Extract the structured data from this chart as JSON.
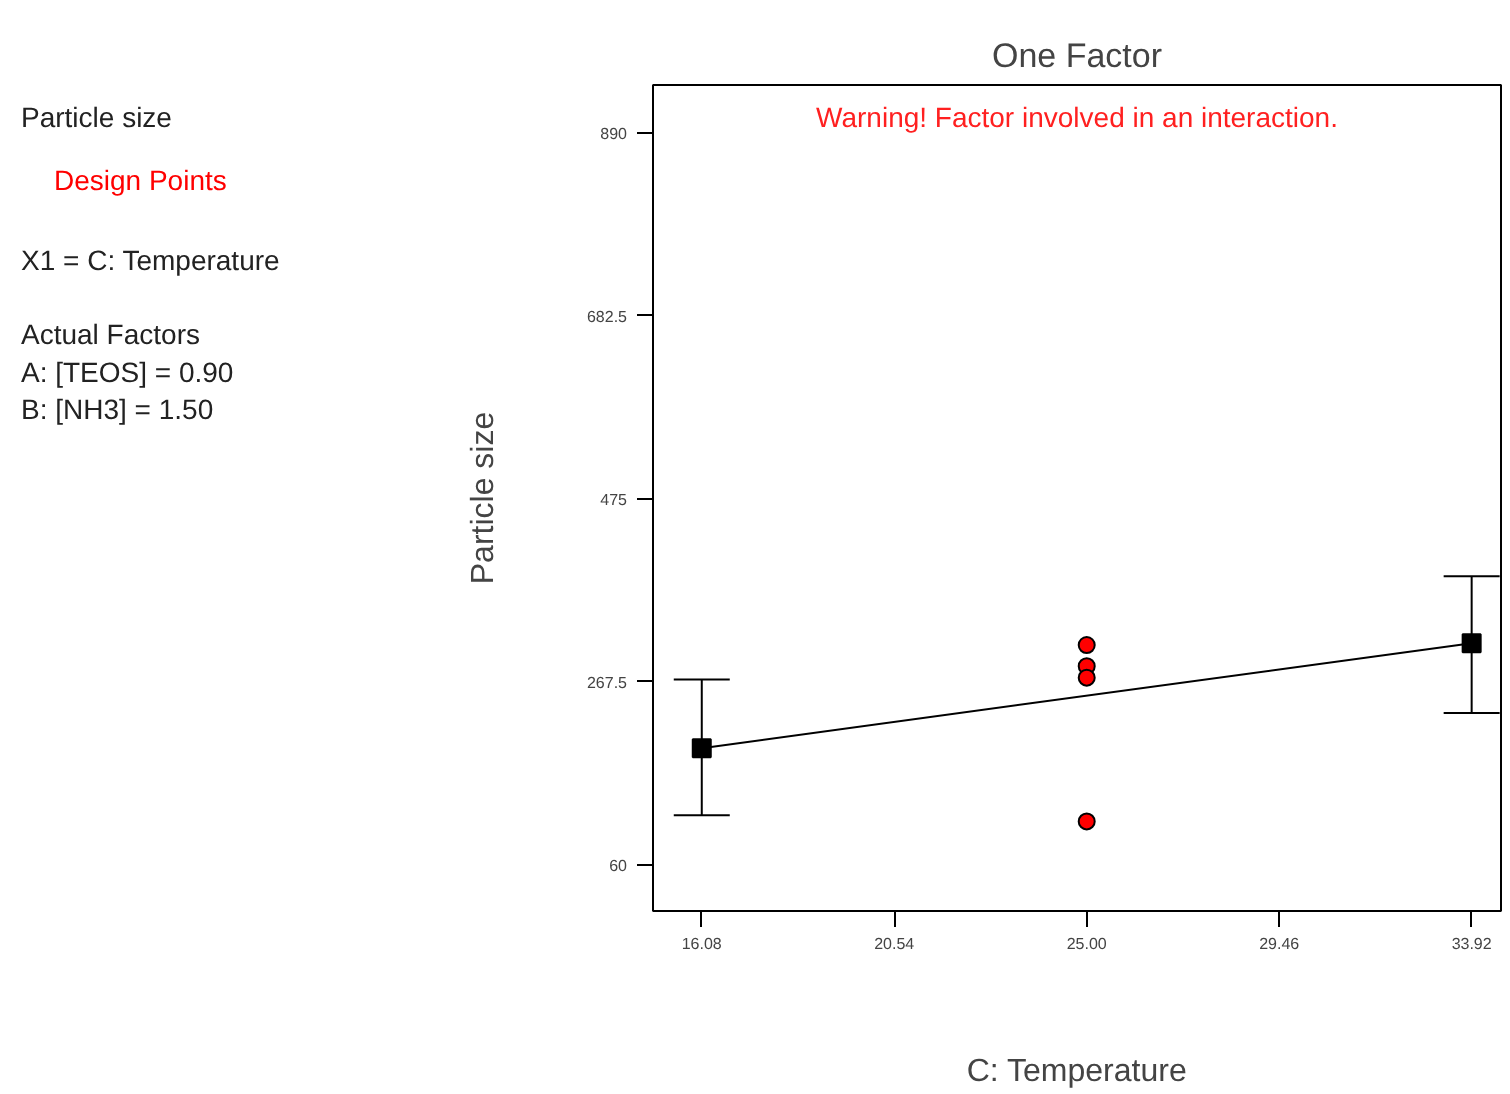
{
  "chart_data": {
    "type": "line",
    "title": "One Factor",
    "xlabel": "C: Temperature",
    "ylabel": "Particle size",
    "annotations": [
      "Particle size",
      "X1 = C: Temperature",
      "Actual Factors",
      "A: [TEOS] = 0.90",
      "B: [NH3] = 1.50",
      "Warning! Factor involved in an interaction."
    ],
    "series": [
      {
        "color": "#000000",
        "marker": "square",
        "x": [
          16.08,
          33.92
        ],
        "values": [
          192,
          311
        ],
        "errors": [
          [
            116,
            270
          ],
          [
            232,
            387
          ]
        ]
      },
      {
        "type": "scatter",
        "name": "Design Points",
        "color": "#ff0000",
        "marker": "circle",
        "x": [
          25,
          25,
          25,
          25
        ],
        "values": [
          309,
          285,
          272,
          109
        ]
      }
    ],
    "xlim": [
      14.95,
      34.6
    ],
    "ylim": [
      7.4,
      944
    ],
    "xticks": [
      {
        "value": 16.08,
        "label": "16.08"
      },
      {
        "value": 20.54,
        "label": "20.54"
      },
      {
        "value": 25,
        "label": "25.00"
      },
      {
        "value": 29.46,
        "label": "29.46"
      },
      {
        "value": 33.92,
        "label": "33.92"
      }
    ],
    "yticks": [
      60,
      267.5,
      475,
      682.5,
      890
    ],
    "grid": false,
    "legend": "left"
  }
}
